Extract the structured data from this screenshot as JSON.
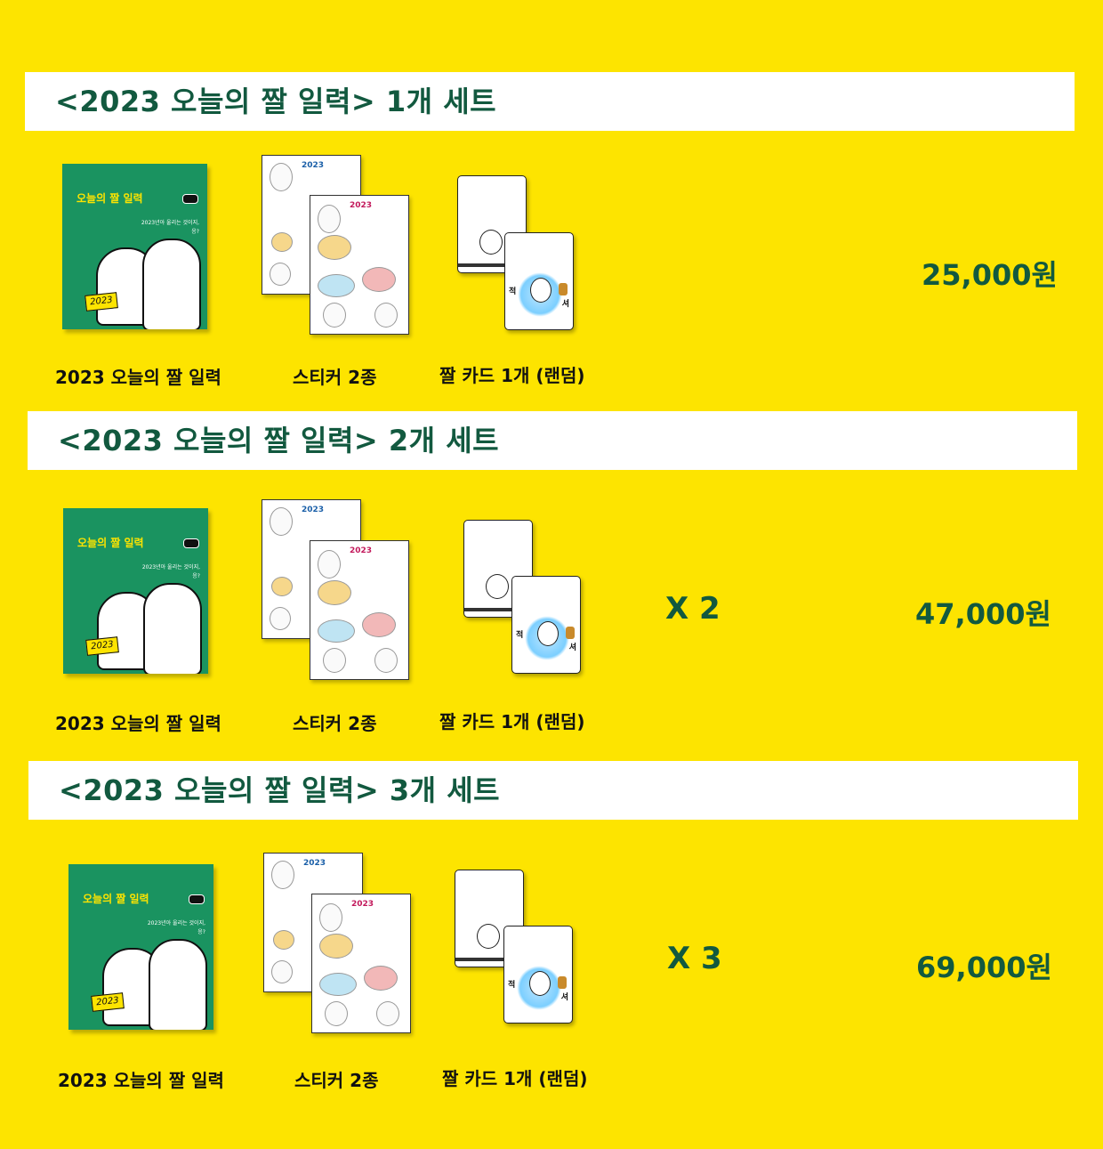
{
  "colors": {
    "background": "#FDE400",
    "accent_green": "#12593F",
    "cover_green": "#1A9360"
  },
  "calendar_cover": {
    "title": "오늘의 짤 일력",
    "subtitle": "2023년아 울리는 것이지, 응?",
    "tag": "2023"
  },
  "sticker_sheet": {
    "year": "2023",
    "name": "오늘의 짤 일력"
  },
  "card": {
    "char_left": "적",
    "char_right": "셔"
  },
  "sets": [
    {
      "title": "<2023 오늘의 짤 일력> 1개 세트",
      "items": [
        "2023 오늘의 짤 일력",
        "스티커 2종",
        "짤 카드 1개 (랜덤)"
      ],
      "multiplier": "",
      "price": "25,000원"
    },
    {
      "title": "<2023 오늘의 짤 일력> 2개 세트",
      "items": [
        "2023 오늘의 짤 일력",
        "스티커 2종",
        "짤 카드 1개 (랜덤)"
      ],
      "multiplier": "X 2",
      "price": "47,000원"
    },
    {
      "title": "<2023 오늘의 짤 일력> 3개 세트",
      "items": [
        "2023 오늘의 짤 일력",
        "스티커 2종",
        "짤 카드 1개 (랜덤)"
      ],
      "multiplier": "X 3",
      "price": "69,000원"
    }
  ]
}
